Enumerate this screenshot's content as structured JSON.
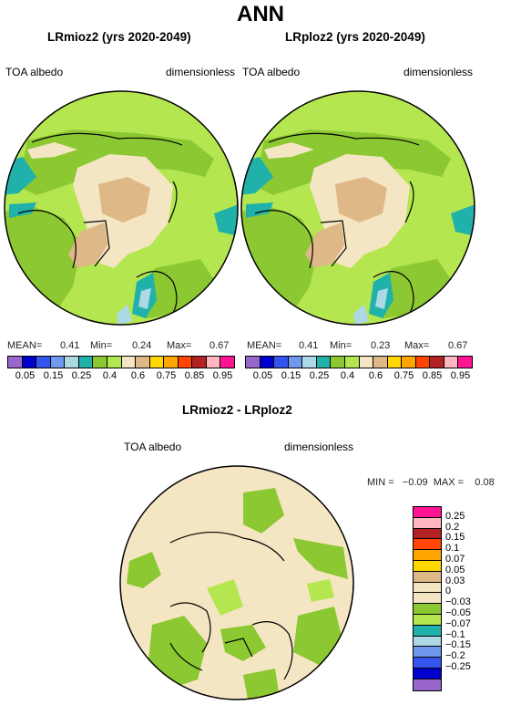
{
  "title": "ANN",
  "panels": [
    {
      "title": "LRmioz2 (yrs 2020-2049)",
      "left_label": "TOA albedo",
      "right_label": "dimensionless",
      "mean_label": "MEAN=",
      "mean": "0.41",
      "min_label": "Min=",
      "min": "0.24",
      "max_label": "Max=",
      "max": "0.67"
    },
    {
      "title": "LRploz2 (yrs 2020-2049)",
      "left_label": "TOA albedo",
      "right_label": "dimensionless",
      "mean_label": "MEAN=",
      "mean": "0.41",
      "min_label": "Min=",
      "min": "0.23",
      "max_label": "Max=",
      "max": "0.67"
    }
  ],
  "abs_colorbar": {
    "colors": [
      "#9966cc",
      "#0000cd",
      "#3355ee",
      "#6f99ee",
      "#add8e6",
      "#20b2aa",
      "#8cc832",
      "#b4e650",
      "#f5e6c3",
      "#deb887",
      "#ffd700",
      "#ffa500",
      "#ff4500",
      "#b22222",
      "#ffb6c1",
      "#ff1493"
    ],
    "labels": [
      "0.05",
      "0.15",
      "0.25",
      "0.4",
      "0.6",
      "0.75",
      "0.85",
      "0.95"
    ]
  },
  "diff_panel": {
    "title": "LRmioz2 - LRploz2",
    "left_label": "TOA albedo",
    "right_label": "dimensionless",
    "stats": "MIN =   −0.09  MAX =    0.08"
  },
  "diff_colorbar": {
    "colors": [
      "#ff1493",
      "#ffb6c1",
      "#b22222",
      "#ff4500",
      "#ffa500",
      "#ffd700",
      "#deb887",
      "#f5e6c3",
      "#f5e6c3",
      "#8cc832",
      "#b4e650",
      "#20b2aa",
      "#add8e6",
      "#6f99ee",
      "#3355ee",
      "#0000cd",
      "#9966cc"
    ],
    "labels": [
      "0.25",
      "0.2",
      "0.15",
      "0.1",
      "0.07",
      "0.05",
      "0.03",
      "0",
      "−0.03",
      "−0.05",
      "−0.07",
      "−0.1",
      "−0.15",
      "−0.2",
      "−0.25"
    ]
  }
}
